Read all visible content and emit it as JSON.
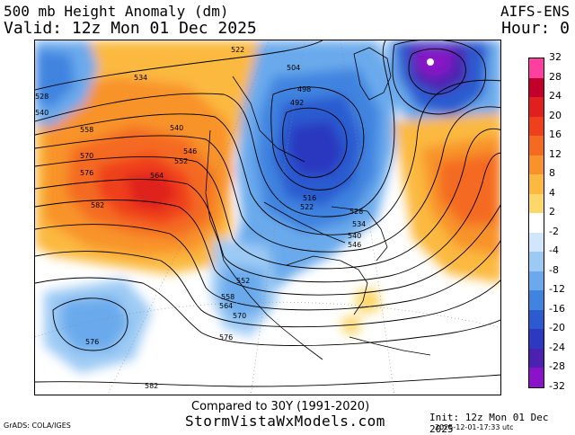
{
  "header": {
    "title": "500 mb Height Anomaly (dm)",
    "valid": "Valid: 12z Mon 01 Dec 2025",
    "model": "AIFS-ENS",
    "hour": "Hour: 0"
  },
  "footer": {
    "compared": "Compared to 30Y (1991-2020)",
    "site": "StormVistaWxModels.com",
    "grads": "GrADS: COLA/IGES",
    "init": "Init: 12z Mon 01 Dec 2025",
    "stamp": "2025-12-01-17:33 utc"
  },
  "colorbar": {
    "labels": [
      "32",
      "28",
      "24",
      "20",
      "16",
      "12",
      "8",
      "4",
      "2",
      "-2",
      "-4",
      "-8",
      "-12",
      "-16",
      "-20",
      "-24",
      "-28",
      "-32"
    ],
    "colors": [
      "#ff3fa0",
      "#c3002a",
      "#e0201e",
      "#ef3f1c",
      "#f46a21",
      "#f8932c",
      "#fbb940",
      "#fdd769",
      "#ffffff",
      "#cfe6fb",
      "#9ccaf4",
      "#6aaaec",
      "#4184e0",
      "#2c5bd0",
      "#2c39c0",
      "#4b22b0",
      "#8a12c8"
    ]
  },
  "map": {
    "contour_labels": [
      "534",
      "522",
      "504",
      "498",
      "492",
      "540",
      "546",
      "552",
      "558",
      "570",
      "576",
      "564",
      "582",
      "528",
      "516",
      "522",
      "528",
      "534",
      "540",
      "546",
      "552",
      "558",
      "564",
      "570",
      "576",
      "576",
      "582",
      "528",
      "540"
    ]
  }
}
